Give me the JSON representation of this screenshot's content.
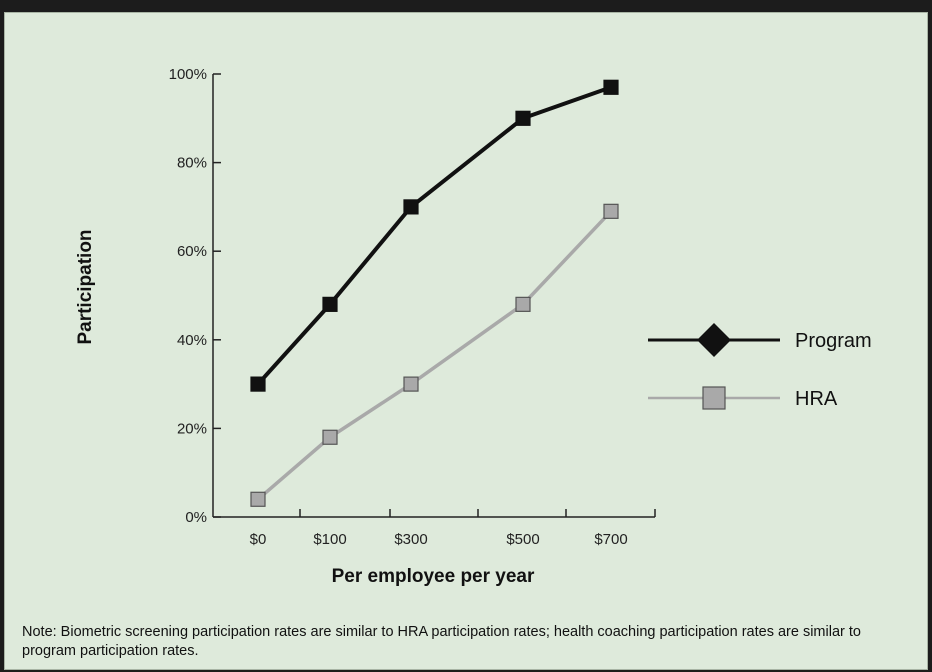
{
  "chart_data": {
    "type": "line",
    "categories": [
      "$0",
      "$100",
      "$300",
      "$500",
      "$700"
    ],
    "series": [
      {
        "name": "Program",
        "values": [
          30,
          48,
          70,
          90,
          97
        ],
        "color": "#111111",
        "marker": "square-filled"
      },
      {
        "name": "HRA",
        "values": [
          4,
          18,
          30,
          48,
          69
        ],
        "color": "#a9a9a9",
        "marker": "square-gray"
      }
    ],
    "xlabel": "Per employee per year",
    "ylabel": "Participation",
    "ylim": [
      0,
      100
    ],
    "yticks": [
      "0%",
      "20%",
      "40%",
      "60%",
      "80%",
      "100%"
    ],
    "grid": false,
    "legend_position": "right"
  },
  "note": "Note: Biometric screening participation rates are similar to HRA participation rates; health coaching participation rates are similar to program participation rates."
}
